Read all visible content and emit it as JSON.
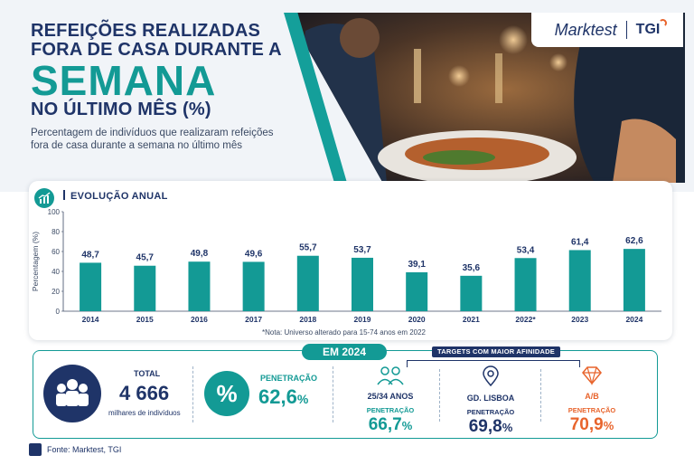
{
  "header": {
    "title_line1": "REFEIÇÕES REALIZADAS",
    "title_line2": "FORA DE CASA DURANTE A",
    "title_big": "SEMANA",
    "title_line3": "NO ÚLTIMO MÊS (%)",
    "subtitle": "Percentagem de indivíduos que realizaram refeições fora de casa durante a semana no último mês"
  },
  "logos": {
    "marktest": "Marktest",
    "tgi": "TGI"
  },
  "chart_section": {
    "title": "EVOLUÇÃO ANUAL",
    "note": "*Nota: Universo alterado para 15-74 anos em 2022"
  },
  "chart_data": {
    "type": "bar",
    "categories": [
      "2014",
      "2015",
      "2016",
      "2017",
      "2018",
      "2019",
      "2020",
      "2021",
      "2022*",
      "2023",
      "2024"
    ],
    "values": [
      48.7,
      45.7,
      49.8,
      49.6,
      55.7,
      53.7,
      39.1,
      35.6,
      53.4,
      61.4,
      62.6
    ],
    "value_labels": [
      "48,7",
      "45,7",
      "49,8",
      "49,6",
      "55,7",
      "53,7",
      "39,1",
      "35,6",
      "53,4",
      "61,4",
      "62,6"
    ],
    "ylabel": "Percentagem (%)",
    "ylim": [
      0,
      100
    ],
    "yticks": [
      0,
      20,
      40,
      60,
      80,
      100
    ],
    "grid": false,
    "bar_color": "#139a95"
  },
  "summary": {
    "badge": "EM 2024",
    "targets_label": "TARGETS COM MAIOR AFINIDADE",
    "total_label": "TOTAL",
    "total_value": "4 666",
    "total_unit": "milhares de indivíduos",
    "pct_symbol": "%",
    "penetration_label": "PENETRAÇÃO",
    "penetration_value": "62,6",
    "penetration_unit": "%",
    "targets": [
      {
        "name": "25/34 ANOS",
        "pen_label": "PENETRAÇÃO",
        "value": "66,7",
        "unit": "%",
        "color": "#139a95",
        "icon": "people-icon"
      },
      {
        "name": "GD. LISBOA",
        "pen_label": "PENETRAÇÃO",
        "value": "69,8",
        "unit": "%",
        "color": "#1f3468",
        "icon": "location-pin-icon"
      },
      {
        "name": "A/B",
        "pen_label": "PENETRAÇÃO",
        "value": "70,9",
        "unit": "%",
        "color": "#e8642c",
        "icon": "diamond-icon"
      }
    ]
  },
  "footer": {
    "source": "Fonte: Marktest, TGI"
  }
}
